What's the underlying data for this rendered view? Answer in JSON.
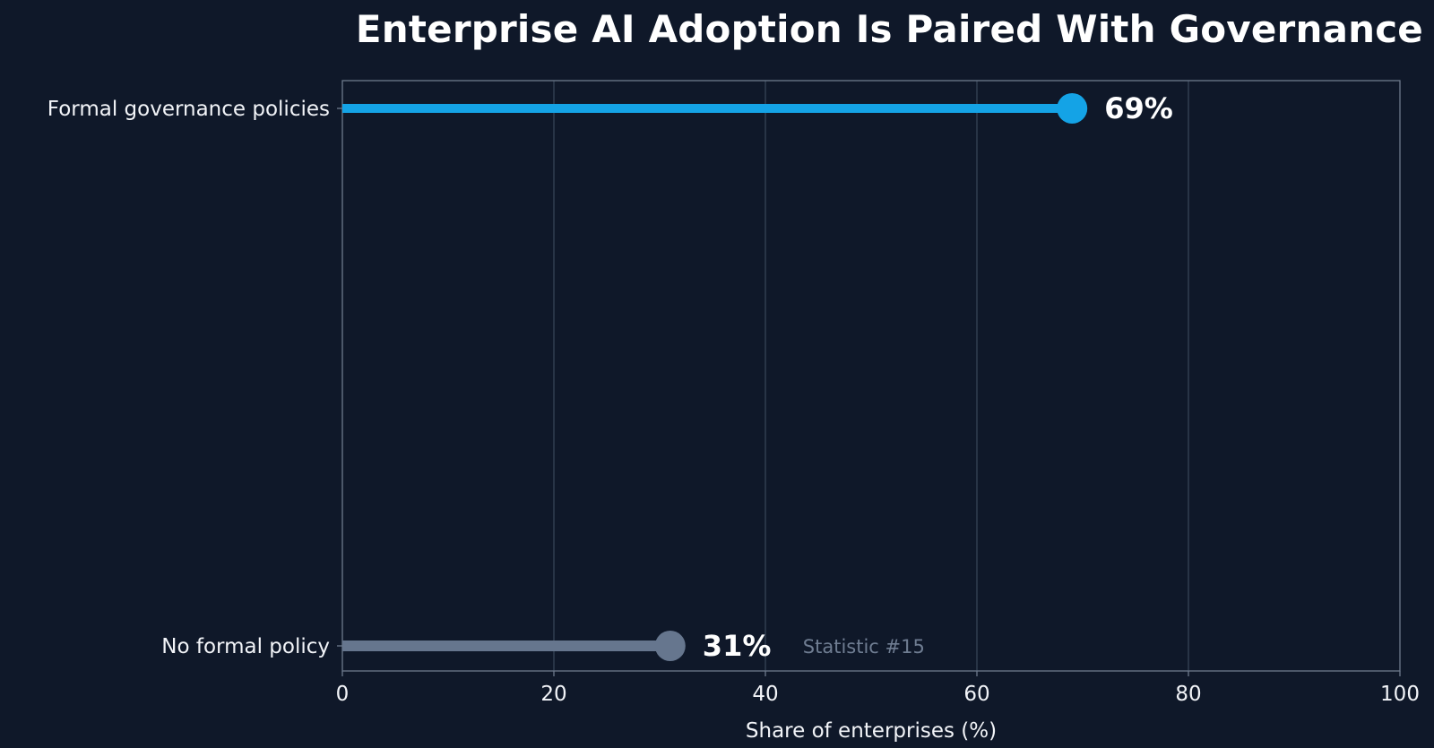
{
  "chart_data": {
    "type": "lollipop",
    "title": "Enterprise AI Adoption Is Paired With Governance",
    "xlabel": "Share of enterprises (%)",
    "ylabel": "",
    "xlim": [
      0,
      100
    ],
    "xticks": [
      0,
      20,
      40,
      60,
      80,
      100
    ],
    "grid": "vertical",
    "categories": [
      "Formal governance policies",
      "No formal policy"
    ],
    "values": [
      69,
      31
    ],
    "value_labels": [
      "69%",
      "31%"
    ],
    "colors": [
      "#14a3e6",
      "#66768e"
    ],
    "annotation": "Statistic #15"
  },
  "colors": {
    "background": "#0f1829",
    "accent": "#14a3e6",
    "muted": "#66768e",
    "grid": "#3a4659",
    "frame": "#6d7a8c"
  }
}
